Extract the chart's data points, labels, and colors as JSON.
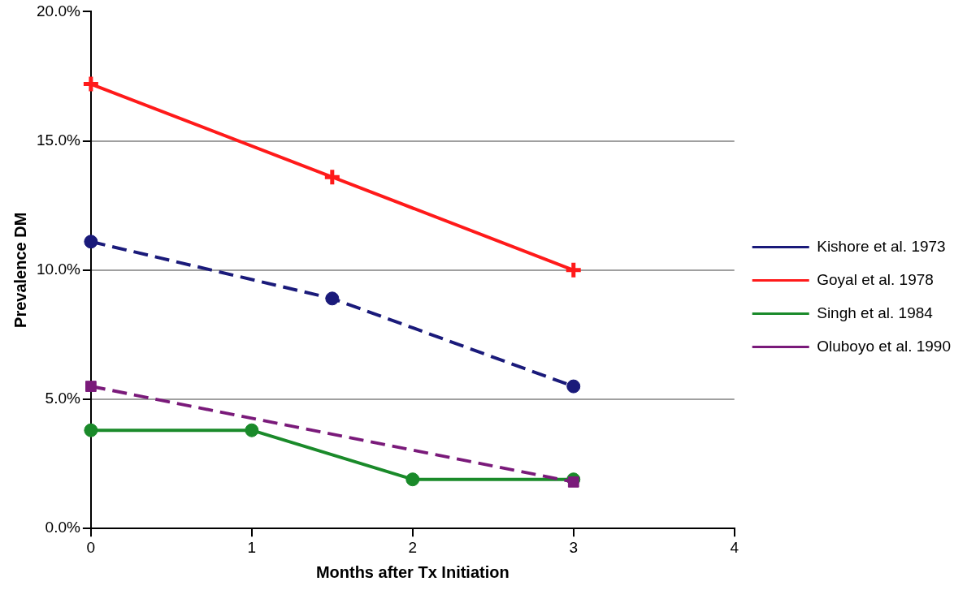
{
  "chart_data": {
    "type": "line",
    "xlabel": "Months after Tx Initiation",
    "ylabel": "Prevalence DM",
    "xlim": [
      0,
      4
    ],
    "xticks": [
      0,
      1,
      2,
      3,
      4
    ],
    "ylim": [
      0,
      20
    ],
    "yticks": [
      {
        "value": 0,
        "label": "0.0%"
      },
      {
        "value": 5,
        "label": "5.0%"
      },
      {
        "value": 10,
        "label": "10.0%"
      },
      {
        "value": 15,
        "label": "15.0%"
      },
      {
        "value": 20,
        "label": "20.0%"
      }
    ],
    "grid": "y",
    "legend": "right",
    "series": [
      {
        "name": "Kishore et al. 1973",
        "color": "#1a1a7a",
        "x": [
          0,
          1.5,
          3
        ],
        "values": [
          11.1,
          8.9,
          5.5
        ],
        "marker": "circle",
        "line_style": "dashed"
      },
      {
        "name": "Goyal et al. 1978",
        "color": "#ff1a1a",
        "x": [
          0,
          1.5,
          3
        ],
        "values": [
          17.2,
          13.6,
          10.0
        ],
        "marker": "cross",
        "line_style": "solid"
      },
      {
        "name": "Singh et al. 1984",
        "color": "#1a8a2a",
        "x": [
          0,
          1,
          2,
          3
        ],
        "values": [
          3.8,
          3.8,
          1.9,
          1.9
        ],
        "marker": "circle",
        "line_style": "solid"
      },
      {
        "name": "Oluboyo et al. 1990",
        "color": "#7a1a7a",
        "x": [
          0,
          3
        ],
        "values": [
          5.5,
          1.8
        ],
        "marker": "square",
        "line_style": "dashed"
      }
    ]
  }
}
